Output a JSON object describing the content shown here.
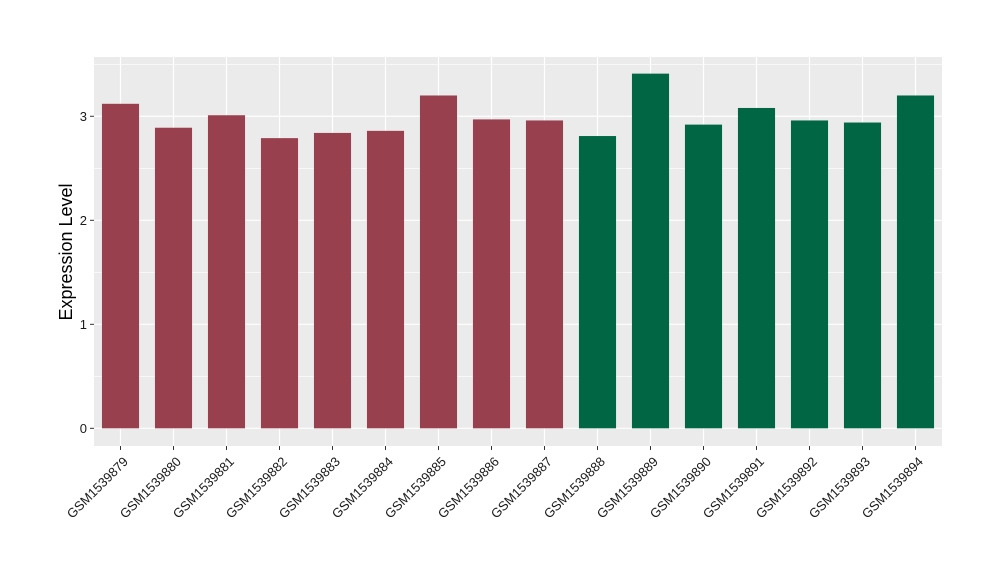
{
  "chart_data": {
    "type": "bar",
    "ylabel": "Expression Level",
    "xlabel": "",
    "title": "",
    "ylim": [
      -0.17,
      3.57
    ],
    "yticks": [
      0,
      1,
      2,
      3
    ],
    "grid": true,
    "categories": [
      "GSM1539879",
      "GSM1539880",
      "GSM1539881",
      "GSM1539882",
      "GSM1539883",
      "GSM1539884",
      "GSM1539885",
      "GSM1539886",
      "GSM1539887",
      "GSM1539888",
      "GSM1539889",
      "GSM1539890",
      "GSM1539891",
      "GSM1539892",
      "GSM1539893",
      "GSM1539894"
    ],
    "values": [
      3.12,
      2.89,
      3.01,
      2.79,
      2.84,
      2.86,
      3.2,
      2.97,
      2.96,
      2.81,
      3.41,
      2.92,
      3.08,
      2.96,
      2.94,
      3.2
    ],
    "group": [
      0,
      0,
      0,
      0,
      0,
      0,
      0,
      0,
      0,
      1,
      1,
      1,
      1,
      1,
      1,
      1
    ],
    "colors": [
      "#99404f",
      "#006644"
    ],
    "panel_background": "#ebebeb",
    "grid_color": "#ffffff"
  }
}
